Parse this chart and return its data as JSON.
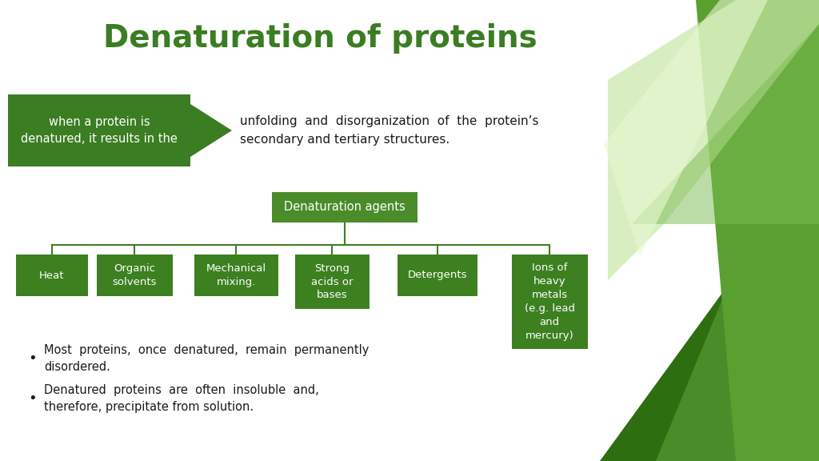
{
  "title": "Denaturation of proteins",
  "title_color": "#3a7d22",
  "title_fontsize": 28,
  "bg_color": "#ffffff",
  "arrow_box_text": "when a protein is\ndenatured, it results in the",
  "arrow_box_color": "#3a7d22",
  "result_text": "unfolding  and  disorganization  of  the  protein’s\nsecondary and tertiary structures.",
  "central_box_text": "Denaturation agents",
  "central_box_color": "#4a8c2a",
  "child_boxes": [
    {
      "text": "Heat",
      "color": "#3d8020"
    },
    {
      "text": "Organic\nsolvents",
      "color": "#3d8020"
    },
    {
      "text": "Mechanical\nmixing.",
      "color": "#3d8020"
    },
    {
      "text": "Strong\nacids or\nbases",
      "color": "#3d8020"
    },
    {
      "text": "Detergents",
      "color": "#3d8020"
    },
    {
      "text": "Ions of\nheavy\nmetals\n(e.g. lead\nand\nmercury)",
      "color": "#3d8020"
    }
  ],
  "bullet_points": [
    "Most  proteins,  once  denatured,  remain  permanently\ndisordered.",
    "Denatured  proteins  are  often  insoluble  and,\ntherefore, precipitate from solution."
  ],
  "line_color": "#3d8020",
  "text_color_dark": "#1a1a1a",
  "text_color_white": "#ffffff",
  "figsize": [
    10.24,
    5.76
  ],
  "dpi": 100
}
